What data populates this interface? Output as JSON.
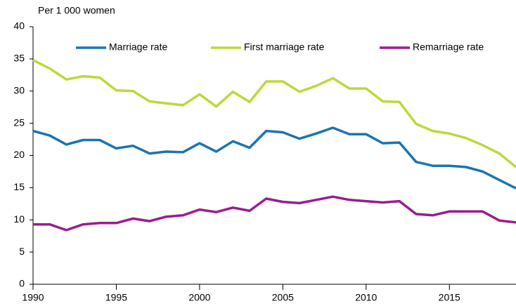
{
  "chart_data": {
    "type": "line",
    "y_axis_label": "Per 1 000 women",
    "x": [
      1990,
      1991,
      1992,
      1993,
      1994,
      1995,
      1996,
      1997,
      1998,
      1999,
      2000,
      2001,
      2002,
      2003,
      2004,
      2005,
      2006,
      2007,
      2008,
      2009,
      2010,
      2011,
      2012,
      2013,
      2014,
      2015,
      2016,
      2017,
      2018,
      2019
    ],
    "series": [
      {
        "name": "Marriage rate",
        "color": "#1a75b1",
        "values": [
          23.8,
          23.1,
          21.7,
          22.4,
          22.4,
          21.1,
          21.5,
          20.3,
          20.6,
          20.5,
          21.9,
          20.6,
          22.2,
          21.2,
          23.8,
          23.6,
          22.6,
          23.4,
          24.3,
          23.3,
          23.3,
          21.9,
          22.0,
          19.0,
          18.4,
          18.4,
          18.2,
          17.5,
          16.2,
          14.9
        ]
      },
      {
        "name": "First marriage rate",
        "color": "#c0d73a",
        "values": [
          34.8,
          33.5,
          31.8,
          32.3,
          32.1,
          30.1,
          30.0,
          28.4,
          28.1,
          27.8,
          29.5,
          27.6,
          29.9,
          28.3,
          31.5,
          31.5,
          29.9,
          30.8,
          32.0,
          30.4,
          30.4,
          28.4,
          28.3,
          24.9,
          23.8,
          23.4,
          22.7,
          21.6,
          20.3,
          18.2
        ]
      },
      {
        "name": "Remarriage rate",
        "color": "#9b1c8e",
        "values": [
          9.3,
          9.3,
          8.4,
          9.3,
          9.5,
          9.5,
          10.2,
          9.8,
          10.5,
          10.7,
          11.6,
          11.2,
          11.9,
          11.4,
          13.3,
          12.8,
          12.6,
          13.1,
          13.6,
          13.1,
          12.9,
          12.7,
          12.9,
          10.9,
          10.7,
          11.3,
          11.3,
          11.3,
          9.9,
          9.6
        ]
      }
    ],
    "xlim": [
      1990,
      2019
    ],
    "xticks": [
      1990,
      1995,
      2000,
      2005,
      2010,
      2015
    ],
    "ylim": [
      0,
      40
    ],
    "yticks": [
      0,
      5,
      10,
      15,
      20,
      25,
      30,
      35,
      40
    ],
    "grid": false,
    "legend": "top"
  }
}
